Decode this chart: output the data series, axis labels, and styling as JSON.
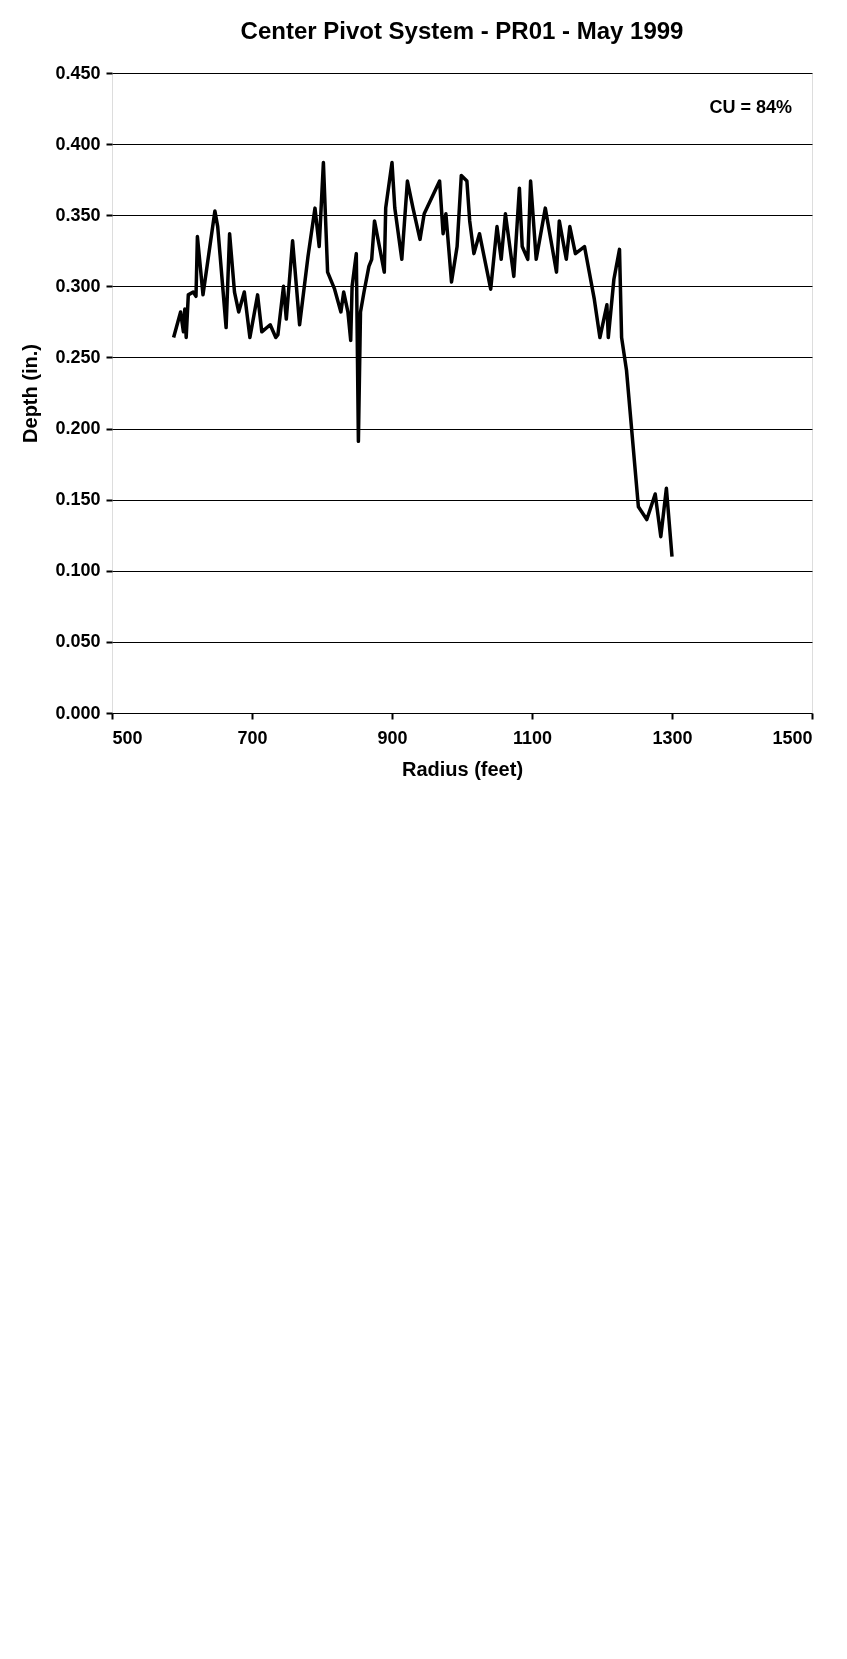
{
  "chart_data": {
    "type": "line",
    "title": "Center Pivot System - PR01 - May 1999",
    "xlabel": "Radius (feet)",
    "ylabel": "Depth (in.)",
    "annotations": [
      "CU = 84%"
    ],
    "xlim": [
      500,
      1500
    ],
    "xticks": [
      500,
      700,
      900,
      1100,
      1300,
      1500
    ],
    "ylim": [
      0,
      0.45
    ],
    "yticks": [
      {
        "value": 0,
        "label": "0.000"
      },
      {
        "value": 0.05,
        "label": "0.050"
      },
      {
        "value": 0.1,
        "label": "0.100"
      },
      {
        "value": 0.15,
        "label": "0.150"
      },
      {
        "value": 0.2,
        "label": "0.200"
      },
      {
        "value": 0.25,
        "label": "0.250"
      },
      {
        "value": 0.3,
        "label": "0.300"
      },
      {
        "value": 0.35,
        "label": "0.350"
      },
      {
        "value": 0.4,
        "label": "0.400"
      },
      {
        "value": 0.45,
        "label": "0.450"
      }
    ],
    "grid": "y",
    "marker": "none",
    "line_style": "solid",
    "series": [
      {
        "color": "#000000",
        "x": [
          588,
          598,
          602,
          604,
          606,
          609,
          616,
          620,
          622,
          630,
          647,
          651,
          663,
          668,
          675,
          681,
          689,
          697,
          708,
          714,
          726,
          734,
          737,
          745,
          749,
          758,
          768,
          780,
          790,
          796,
          802,
          808,
          818,
          827,
          831,
          837,
          841,
          843,
          849,
          852,
          855,
          860,
          867,
          871,
          875,
          889,
          891,
          900,
          904,
          914,
          922,
          930,
          940,
          946,
          968,
          973,
          977,
          985,
          993,
          999,
          1007,
          1011,
          1017,
          1025,
          1041,
          1050,
          1056,
          1062,
          1074,
          1082,
          1086,
          1094,
          1098,
          1106,
          1119,
          1135,
          1139,
          1149,
          1154,
          1162,
          1175,
          1189,
          1197,
          1207,
          1209,
          1217,
          1225,
          1228,
          1235,
          1252,
          1264,
          1276,
          1284,
          1292,
          1300
        ],
        "values": [
          0.264,
          0.282,
          0.268,
          0.284,
          0.264,
          0.294,
          0.296,
          0.293,
          0.335,
          0.294,
          0.353,
          0.342,
          0.271,
          0.337,
          0.296,
          0.282,
          0.296,
          0.264,
          0.294,
          0.268,
          0.273,
          0.264,
          0.266,
          0.3,
          0.277,
          0.332,
          0.273,
          0.321,
          0.355,
          0.328,
          0.387,
          0.31,
          0.298,
          0.282,
          0.296,
          0.282,
          0.262,
          0.3,
          0.323,
          0.191,
          0.282,
          0.296,
          0.314,
          0.319,
          0.346,
          0.31,
          0.355,
          0.387,
          0.355,
          0.319,
          0.374,
          0.355,
          0.333,
          0.351,
          0.374,
          0.337,
          0.351,
          0.303,
          0.328,
          0.378,
          0.374,
          0.346,
          0.323,
          0.337,
          0.298,
          0.342,
          0.319,
          0.351,
          0.307,
          0.369,
          0.328,
          0.319,
          0.374,
          0.319,
          0.355,
          0.31,
          0.346,
          0.319,
          0.342,
          0.323,
          0.328,
          0.291,
          0.264,
          0.287,
          0.264,
          0.305,
          0.326,
          0.264,
          0.241,
          0.145,
          0.136,
          0.154,
          0.124,
          0.158,
          0.11
        ]
      }
    ]
  }
}
